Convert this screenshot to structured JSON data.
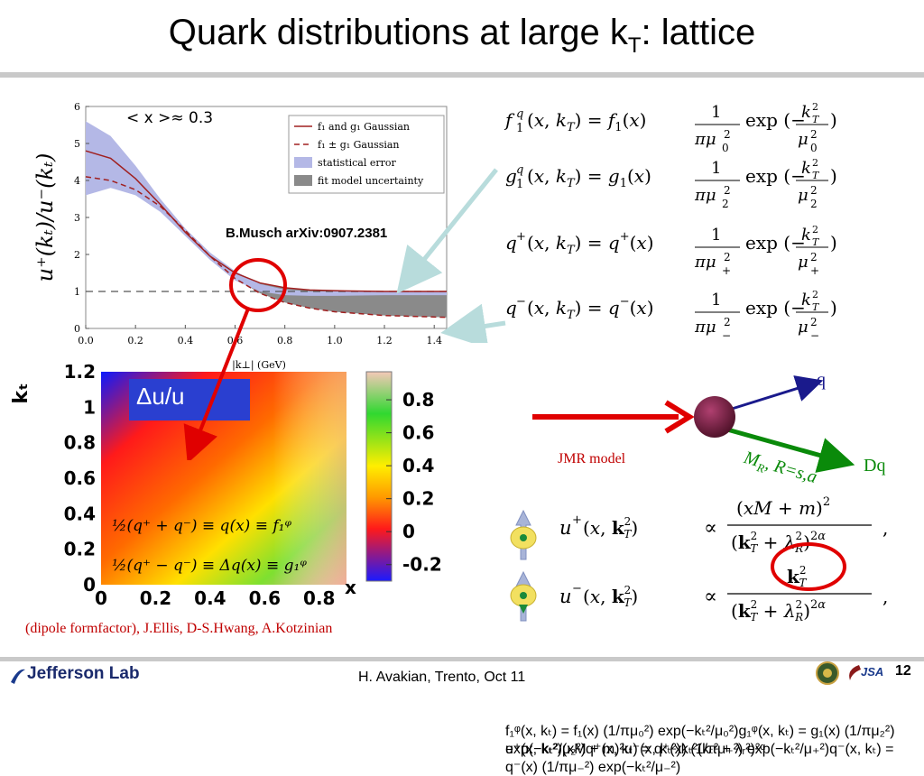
{
  "slide": {
    "title": "Quark distributions at large k",
    "title_sub": "T",
    "title_tail": ":  lattice",
    "citation": "B.Musch arXiv:0907.2381",
    "jmr_label": "JMR model",
    "formfactor_note": "(dipole formfactor), J.Ellis, D-S.Hwang, A.Kotzinian",
    "footer_text": "H. Avakian, Trento, Oct 11",
    "page_number": "12",
    "logo_text": "Jefferson Lab",
    "jsa_text": "JSA",
    "particle_q": "q",
    "particle_dq": "Dq",
    "mr_label": "M",
    "mr_sub": "R",
    "mr_tail": ", R=s,a"
  },
  "equations": {
    "f1": "f₁ᵠ(x, kₜ) = f₁(x) (1/πμ₀²) exp(−kₜ²/μ₀²)",
    "g1": "g₁ᵠ(x, kₜ) = g₁(x) (1/πμ₂²) exp(−kₜ²/μ₂²)",
    "qplus": "q⁺(x, kₜ) = q⁺(x) (1/πμ₊²) exp(−kₜ²/μ₊²)",
    "qminus": "q⁻(x, kₜ) = q⁻(x) (1/πμ₋²) exp(−kₜ²/μ₋²)",
    "uplus_lhs": "u⁺(x, kₜ²)",
    "uplus_num": "(xM + m)²",
    "uminus_lhs": "u⁻(x, kₜ²)",
    "uminus_num": "kₜ²",
    "denominator": "(kₜ² + λᵣ²)²ᵅ",
    "propto": "∝",
    "comma": ","
  },
  "chart_data": [
    {
      "type": "line",
      "ylabel": "u⁺(kₜ)/u⁻(kₜ)",
      "xlabel": "|k⊥| (GeV)",
      "annotation": "< x >≈ 0.3",
      "xlim": [
        0,
        1.45
      ],
      "ylim": [
        0,
        6
      ],
      "xticks": [
        "0.0",
        "0.2",
        "0.4",
        "0.6",
        "0.8",
        "1.0",
        "1.2",
        "1.4"
      ],
      "yticks": [
        "0",
        "1",
        "2",
        "3",
        "4",
        "5",
        "6"
      ],
      "legend": [
        "f₁ and g₁ Gaussian",
        "f₁ ± g₁ Gaussian",
        "statistical error",
        "fit model uncertainty"
      ],
      "series": [
        {
          "name": "f₁ and g₁ Gaussian",
          "x": [
            0,
            0.1,
            0.2,
            0.3,
            0.4,
            0.5,
            0.6,
            0.7,
            0.8,
            0.9,
            1.0,
            1.2,
            1.45
          ],
          "y": [
            4.8,
            4.6,
            4.05,
            3.35,
            2.6,
            1.95,
            1.5,
            1.23,
            1.1,
            1.04,
            1.02,
            1.0,
            1.0
          ]
        },
        {
          "name": "f₁ ± g₁ Gaussian",
          "x": [
            0,
            0.1,
            0.2,
            0.3,
            0.4,
            0.5,
            0.6,
            0.7,
            0.8,
            0.9,
            1.0,
            1.2,
            1.45
          ],
          "y": [
            4.1,
            4.0,
            3.75,
            3.3,
            2.65,
            1.95,
            1.35,
            0.95,
            0.7,
            0.55,
            0.45,
            0.35,
            0.3
          ]
        }
      ],
      "stat_band_upper": [
        5.6,
        5.2,
        4.4,
        3.5,
        2.7,
        2.05,
        1.55,
        1.2,
        1.05,
        1.0,
        1.0,
        1.0,
        1.0
      ],
      "stat_band_lower": [
        3.6,
        3.8,
        3.6,
        3.15,
        2.5,
        1.85,
        1.3,
        1.0,
        0.9,
        0.88,
        0.88,
        0.9,
        0.9
      ],
      "model_band_upper": [
        4.8,
        4.6,
        4.05,
        3.35,
        2.6,
        1.95,
        1.5,
        1.23,
        1.1,
        1.04,
        1.02,
        1.0,
        1.0
      ],
      "model_band_lower": [
        4.1,
        4.0,
        3.75,
        3.3,
        2.65,
        1.95,
        1.35,
        0.95,
        0.7,
        0.55,
        0.45,
        0.35,
        0.3
      ],
      "reference_line": 1
    },
    {
      "type": "heatmap",
      "title": "Δu/u",
      "xlabel": "x",
      "ylabel": "kₜ",
      "xticks": [
        "0",
        "0.2",
        "0.4",
        "0.6",
        "0.8"
      ],
      "yticks": [
        "0",
        "0.2",
        "0.4",
        "0.6",
        "0.8",
        "1",
        "1.2"
      ],
      "colorbar_ticks": [
        "0.8",
        "0.6",
        "0.4",
        "0.2",
        "0",
        "-0.2"
      ],
      "eq1": "½(q⁺ + q⁻) ≡   q(x)   ≡ f₁ᵠ",
      "eq2": "½(q⁺ − q⁻) ≡  Δq(x)  ≡ g₁ᵠ"
    }
  ],
  "colors": {
    "red": "#e00000",
    "green": "#0a8a0a",
    "navy": "#1a1a8c",
    "band": "#b4b8e6",
    "grey": "#8a8a8a",
    "maroon": "#7a1f3a"
  }
}
